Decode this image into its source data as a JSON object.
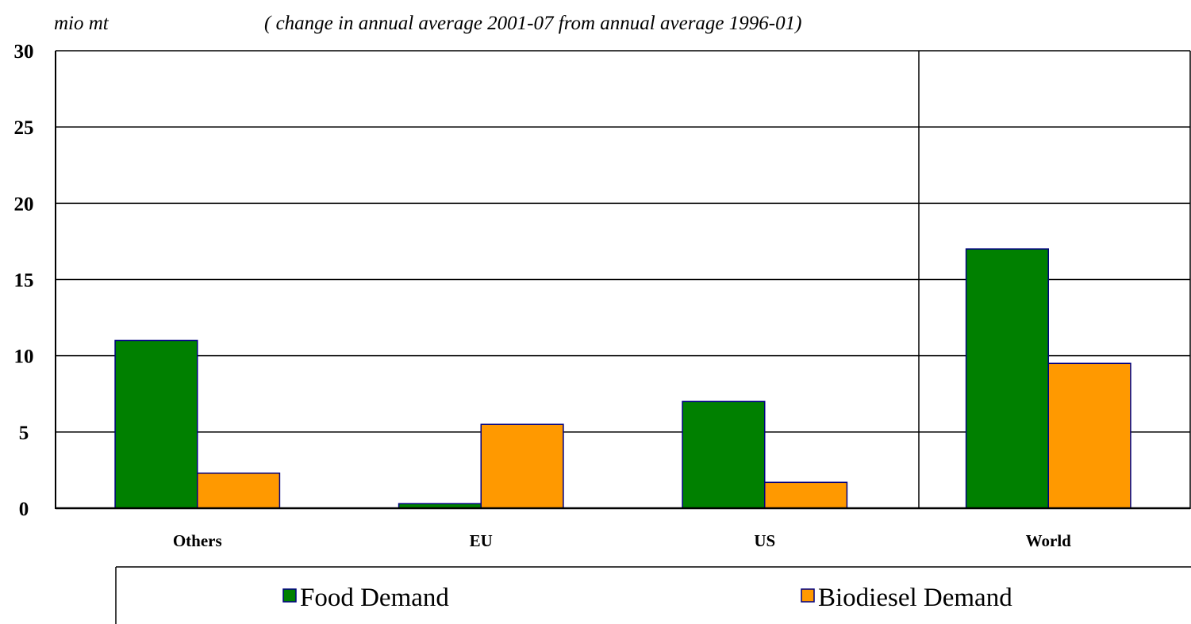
{
  "chart_data": {
    "type": "bar",
    "ylabel": "mio mt",
    "subtitle": "( change in annual average 2001-07 from annual average 1996-01)",
    "categories": [
      "Others",
      "EU",
      "US",
      "World"
    ],
    "series": [
      {
        "name": "Food Demand",
        "color": "#008000",
        "values": [
          11.0,
          0.3,
          7.0,
          17.0
        ]
      },
      {
        "name": "Biodiesel Demand",
        "color": "#FF9900",
        "values": [
          2.3,
          5.5,
          1.7,
          9.5
        ]
      }
    ],
    "ylim": [
      0,
      30
    ],
    "yticks": [
      0,
      5,
      10,
      15,
      20,
      25,
      30
    ],
    "grid": true,
    "legend_position": "bottom"
  }
}
